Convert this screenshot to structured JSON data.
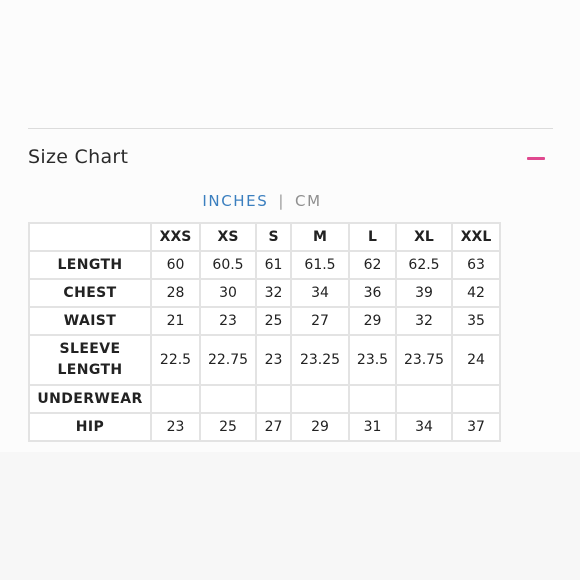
{
  "size_chart": {
    "title": "Size Chart",
    "units": {
      "active": "INCHES",
      "separator": "|",
      "inactive": "CM"
    },
    "columns": [
      "XXS",
      "XS",
      "S",
      "M",
      "L",
      "XL",
      "XXL"
    ],
    "rows": [
      {
        "label": "LENGTH",
        "values": [
          "60",
          "60.5",
          "61",
          "61.5",
          "62",
          "62.5",
          "63"
        ]
      },
      {
        "label": "CHEST",
        "values": [
          "28",
          "30",
          "32",
          "34",
          "36",
          "39",
          "42"
        ]
      },
      {
        "label": "WAIST",
        "values": [
          "21",
          "23",
          "25",
          "27",
          "29",
          "32",
          "35"
        ]
      },
      {
        "label_lines": [
          "SLEEVE",
          "LENGTH"
        ],
        "values": [
          "22.5",
          "22.75",
          "23",
          "23.25",
          "23.5",
          "23.75",
          "24"
        ]
      },
      {
        "label": "UNDERWEAR",
        "values": [
          "",
          "",
          "",
          "",
          "",
          "",
          ""
        ]
      },
      {
        "label": "HIP",
        "values": [
          "23",
          "25",
          "27",
          "29",
          "31",
          "34",
          "37"
        ]
      }
    ]
  },
  "colors": {
    "accent_pink": "#e0488f",
    "unit_active": "#3b7fbf",
    "border": "#e3e3e3"
  }
}
